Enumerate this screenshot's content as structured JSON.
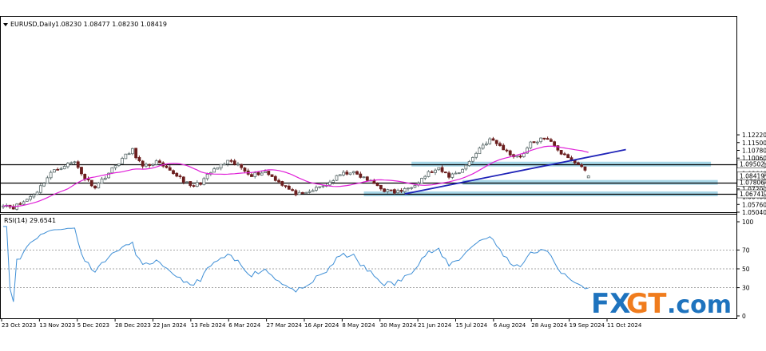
{
  "main_header": {
    "symbol": "EURUSD,Daily",
    "ohlc": "1.08230 1.08477 1.08230 1.08419"
  },
  "rsi_header": "RSI(14) 29.6541",
  "watermark": {
    "fx": "FX",
    "gt": "GT",
    "dotcom": ".com"
  },
  "colors": {
    "up_candle": "#5b6b6b",
    "down_candle": "#6b1e1e",
    "ma": "#e020d8",
    "trendline": "#1f23b8",
    "zone": "#9dd3e6",
    "rsi": "#3f8fd6",
    "fx_blue": "#1e73be",
    "gt_orange": "#f07c1d"
  },
  "chart_data": [
    {
      "type": "candlestick",
      "title": "EURUSD,Daily",
      "ylim": [
        1.0504,
        1.2222
      ],
      "y_ticks": [
        {
          "value": 1.1222,
          "label": "1.12220"
        },
        {
          "value": 1.115,
          "label": "1.11500"
        },
        {
          "value": 1.1078,
          "label": "1.10780"
        },
        {
          "value": 1.1006,
          "label": "1.10060"
        },
        {
          "value": 1.0936,
          "label": "1.09360"
        },
        {
          "value": 1.0864,
          "label": "1.08640"
        },
        {
          "value": 1.0792,
          "label": "1.07920"
        },
        {
          "value": 1.072,
          "label": "1.07200"
        },
        {
          "value": 1.0648,
          "label": "1.06480"
        },
        {
          "value": 1.0576,
          "label": "1.05760"
        },
        {
          "value": 1.0504,
          "label": "1.05040"
        }
      ],
      "x_labels": [
        "23 Oct 2023",
        "13 Nov 2023",
        "5 Dec 2023",
        "28 Dec 2023",
        "22 Jan 2024",
        "13 Feb 2024",
        "6 Mar 2024",
        "27 Mar 2024",
        "16 Apr 2024",
        "8 May 2024",
        "30 May 2024",
        "21 Jun 2024",
        "15 Jul 2024",
        "6 Aug 2024",
        "28 Aug 2024",
        "19 Sep 2024",
        "11 Oct 2024"
      ],
      "horizontal_levels": [
        {
          "value": 1.09502,
          "label": "1.09502"
        },
        {
          "value": 1.07806,
          "label": "1.07806"
        },
        {
          "value": 1.06741,
          "label": "1.06741"
        }
      ],
      "current_price": {
        "value": 1.08419,
        "label": "1.08419"
      },
      "zones": [
        {
          "value": 1.09502,
          "from_index": 120,
          "to_index": 208
        },
        {
          "value": 1.07806,
          "from_index": 135,
          "to_index": 210
        },
        {
          "value": 1.06741,
          "from_index": 106,
          "to_index": 210
        }
      ],
      "trendline": {
        "from": {
          "index": 118,
          "value": 1.0674
        },
        "to": {
          "index": 183,
          "value": 1.1085
        }
      },
      "ma_period": 20,
      "price_anchors": [
        [
          0,
          1.058
        ],
        [
          3,
          1.055
        ],
        [
          6,
          1.06
        ],
        [
          10,
          1.07
        ],
        [
          14,
          1.087
        ],
        [
          18,
          1.094
        ],
        [
          21,
          1.097
        ],
        [
          24,
          1.082
        ],
        [
          27,
          1.074
        ],
        [
          31,
          1.087
        ],
        [
          35,
          1.1
        ],
        [
          38,
          1.108
        ],
        [
          41,
          1.092
        ],
        [
          45,
          1.097
        ],
        [
          48,
          1.09
        ],
        [
          52,
          1.083
        ],
        [
          55,
          1.074
        ],
        [
          58,
          1.078
        ],
        [
          62,
          1.09
        ],
        [
          66,
          1.097
        ],
        [
          69,
          1.094
        ],
        [
          73,
          1.085
        ],
        [
          77,
          1.088
        ],
        [
          81,
          1.079
        ],
        [
          85,
          1.069
        ],
        [
          88,
          1.066
        ],
        [
          91,
          1.071
        ],
        [
          95,
          1.076
        ],
        [
          99,
          1.085
        ],
        [
          102,
          1.088
        ],
        [
          106,
          1.082
        ],
        [
          109,
          1.077
        ],
        [
          112,
          1.071
        ],
        [
          115,
          1.069
        ],
        [
          118,
          1.071
        ],
        [
          122,
          1.079
        ],
        [
          125,
          1.087
        ],
        [
          128,
          1.09
        ],
        [
          131,
          1.084
        ],
        [
          134,
          1.088
        ],
        [
          137,
          1.097
        ],
        [
          140,
          1.11
        ],
        [
          143,
          1.118
        ],
        [
          146,
          1.112
        ],
        [
          149,
          1.104
        ],
        [
          152,
          1.102
        ],
        [
          155,
          1.114
        ],
        [
          158,
          1.118
        ],
        [
          161,
          1.117
        ],
        [
          164,
          1.105
        ],
        [
          167,
          1.098
        ],
        [
          170,
          1.093
        ],
        [
          172,
          1.084
        ]
      ],
      "last_candle": {
        "open": 1.0823,
        "high": 1.08477,
        "low": 1.0823,
        "close": 1.08419
      }
    },
    {
      "type": "line",
      "title": "RSI(14) 29.6541",
      "ylim": [
        0,
        100
      ],
      "y_ticks": [
        {
          "value": 100,
          "label": "100"
        },
        {
          "value": 70,
          "label": "70"
        },
        {
          "value": 50,
          "label": "50"
        },
        {
          "value": 30,
          "label": "30"
        },
        {
          "value": 0,
          "label": "0"
        }
      ],
      "reference_lines": [
        70,
        50,
        30
      ],
      "last_value": 29.6541
    }
  ]
}
